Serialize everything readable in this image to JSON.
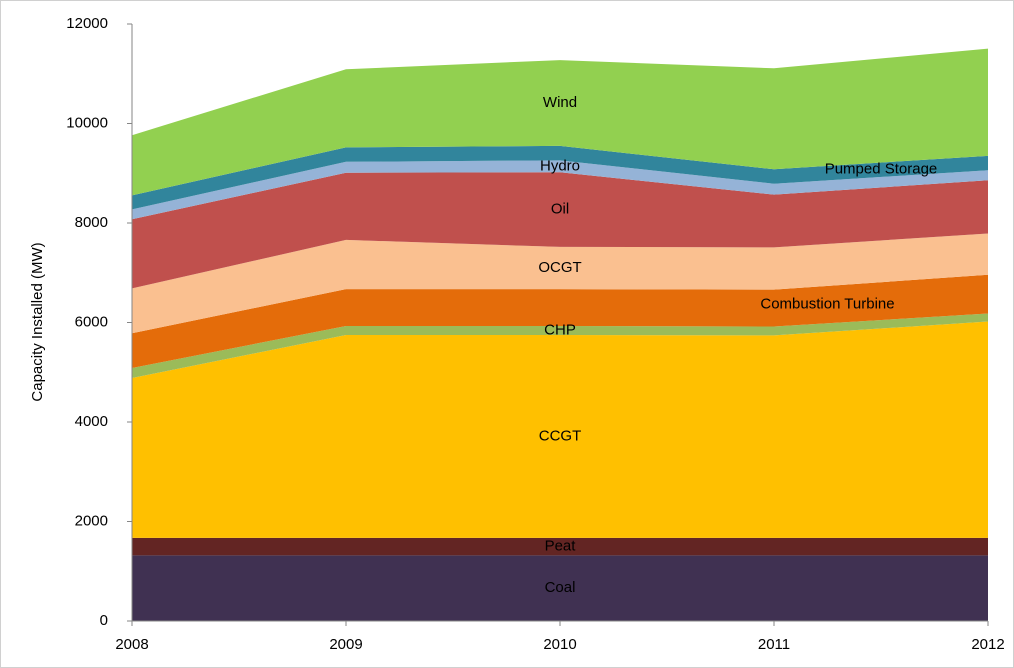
{
  "chart_data": {
    "type": "stacked-area",
    "y_label": "Capacity Installed (MW)",
    "x": [
      2008,
      2009,
      2010,
      2011,
      2012
    ],
    "xlim": [
      2008,
      2012
    ],
    "xticks": [
      2008,
      2009,
      2010,
      2011,
      2012
    ],
    "ylim": [
      0,
      12000
    ],
    "yticks": [
      0,
      2000,
      4000,
      6000,
      8000,
      10000,
      12000
    ],
    "series": [
      {
        "name": "Coal",
        "color": "#403152",
        "values": [
          1320,
          1320,
          1320,
          1320,
          1320
        ]
      },
      {
        "name": "Peat",
        "color": "#632523",
        "values": [
          350,
          350,
          350,
          350,
          350
        ]
      },
      {
        "name": "CCGT",
        "color": "#ffc000",
        "values": [
          3215,
          4080,
          4080,
          4070,
          4350
        ]
      },
      {
        "name": "CHP",
        "color": "#9bbb59",
        "values": [
          200,
          180,
          180,
          180,
          160
        ]
      },
      {
        "name": "Combustion Turbine",
        "color": "#e46c0a",
        "values": [
          700,
          740,
          740,
          740,
          780
        ]
      },
      {
        "name": "OCGT",
        "color": "#fac090",
        "values": [
          900,
          990,
          850,
          850,
          830
        ]
      },
      {
        "name": "Oil",
        "color": "#c0504d",
        "values": [
          1390,
          1350,
          1500,
          1060,
          1070
        ]
      },
      {
        "name": "Hydro",
        "color": "#95b3d7",
        "values": [
          200,
          220,
          240,
          220,
          200
        ]
      },
      {
        "name": "Pumped Storage",
        "color": "#31859c",
        "values": [
          280,
          290,
          290,
          290,
          290
        ]
      },
      {
        "name": "Wind",
        "color": "#92d050",
        "values": [
          1210,
          1570,
          1725,
          2030,
          2155
        ]
      }
    ]
  }
}
